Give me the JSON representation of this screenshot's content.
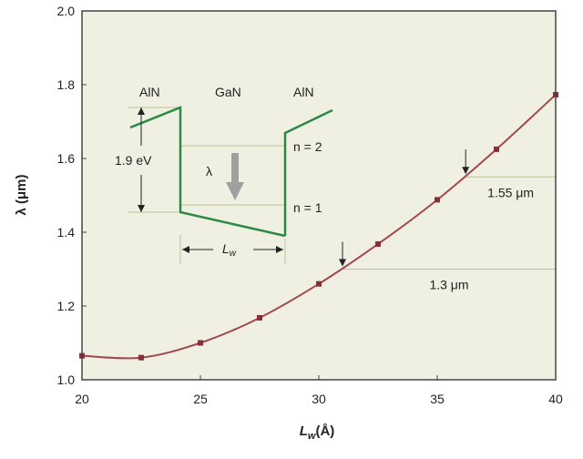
{
  "chart_data": {
    "type": "line",
    "xlabel": {
      "main": "L",
      "sub": "w",
      "unit": "(Å)"
    },
    "ylabel": "λ (μm)",
    "xlim": [
      20,
      40
    ],
    "ylim": [
      1.0,
      2.0
    ],
    "xticks": [
      20,
      25,
      30,
      35,
      40
    ],
    "yticks": [
      1.0,
      1.2,
      1.4,
      1.6,
      1.8,
      2.0
    ],
    "ytick_labels": [
      "1.0",
      "1.2",
      "1.4",
      "1.6",
      "1.8",
      "2.0"
    ],
    "grid": false,
    "background_color": "#eff0e1",
    "series": [
      {
        "color": "#a3474d",
        "marker_color": "#8a2e36",
        "points": [
          {
            "x": 20.0,
            "y": 1.065
          },
          {
            "x": 22.5,
            "y": 1.06
          },
          {
            "x": 25.0,
            "y": 1.1
          },
          {
            "x": 27.5,
            "y": 1.168
          },
          {
            "x": 30.0,
            "y": 1.26
          },
          {
            "x": 32.5,
            "y": 1.368
          },
          {
            "x": 35.0,
            "y": 1.488
          },
          {
            "x": 37.5,
            "y": 1.625
          },
          {
            "x": 40.0,
            "y": 1.773
          }
        ]
      }
    ],
    "reference_lines": [
      {
        "y": 1.3,
        "x_from": 31.0,
        "x_to": 40.0,
        "label": "1.3 μm",
        "arrow_x": 31.0
      },
      {
        "y": 1.55,
        "x_from": 36.2,
        "x_to": 40.0,
        "label": "1.55 μm",
        "arrow_x": 36.2
      }
    ],
    "inset": {
      "labels": {
        "barrier_left": "AlN",
        "well": "GaN",
        "barrier_right": "AlN",
        "band_offset": "1.9 eV",
        "level_2": "n = 2",
        "level_1": "n = 1",
        "transition": "λ",
        "width_main": "L",
        "width_sub": "w"
      },
      "colors": {
        "band": "#2a8a45",
        "guide": "#b8c495",
        "transition_arrow": "#a0a0a0"
      }
    }
  }
}
